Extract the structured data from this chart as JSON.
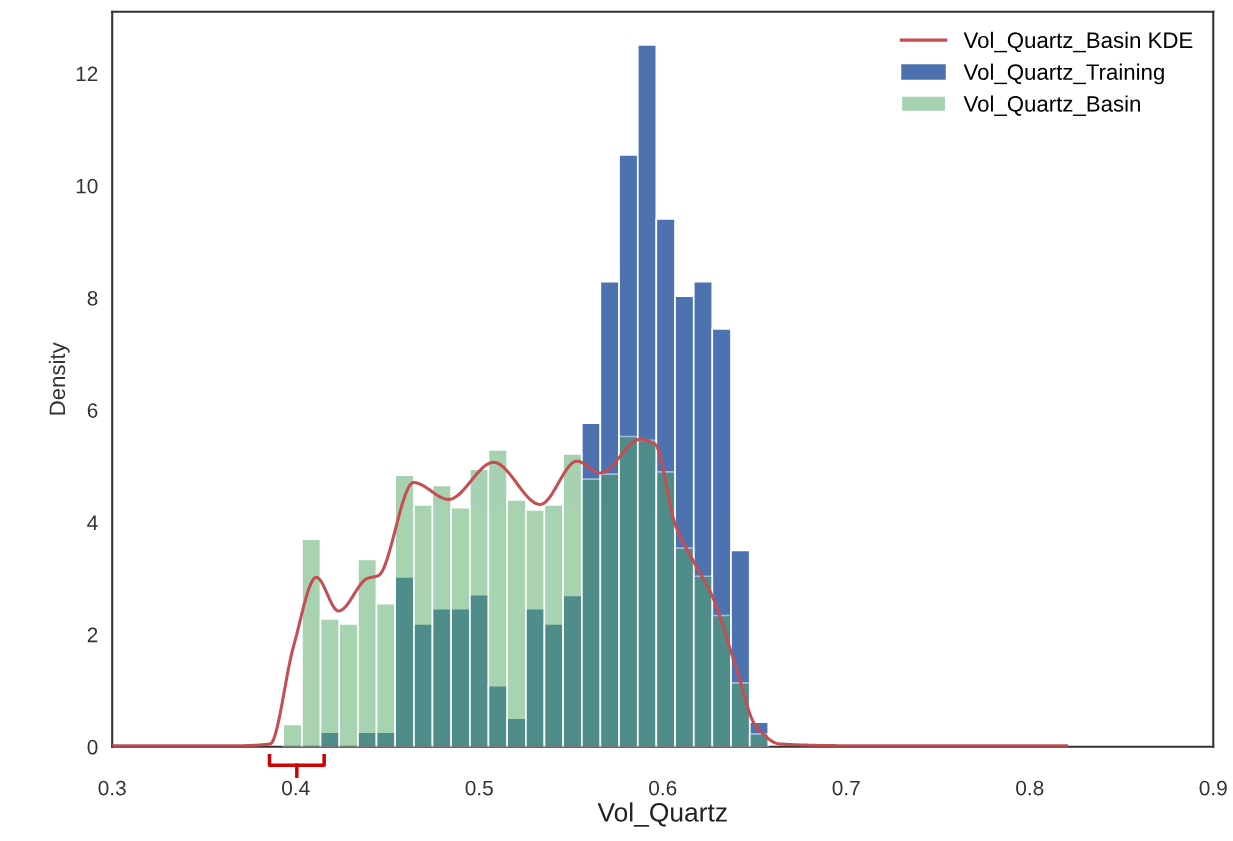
{
  "chart_data": {
    "type": "histogram",
    "xlabel": "Vol_Quartz",
    "ylabel": "Density",
    "bins": [
      0.3932,
      0.4034,
      0.4135,
      0.4237,
      0.4339,
      0.444,
      0.4542,
      0.4644,
      0.4745,
      0.4847,
      0.4949,
      0.505,
      0.5152,
      0.5254,
      0.5355,
      0.5457,
      0.5559,
      0.566,
      0.5762,
      0.5864,
      0.5965,
      0.6067,
      0.6169,
      0.627,
      0.6372,
      0.6474,
      0.6575
    ],
    "series": [
      {
        "name": "Vol_Quartz_Training",
        "color": "#4c72b0",
        "values": [
          0,
          0,
          0.26,
          0,
          0.26,
          0.26,
          3.03,
          2.19,
          2.46,
          2.46,
          2.71,
          1.09,
          0.51,
          2.46,
          2.19,
          2.7,
          5.77,
          8.29,
          10.55,
          12.51,
          9.41,
          8.03,
          8.29,
          7.45,
          3.5,
          0.44
        ]
      },
      {
        "name": "Vol_Quartz_Basin",
        "color": "#a8d3b2",
        "values": [
          0.4,
          3.7,
          2.28,
          2.19,
          3.34,
          2.55,
          4.84,
          4.31,
          4.66,
          4.26,
          4.95,
          5.29,
          4.4,
          4.22,
          4.31,
          5.22,
          4.77,
          4.86,
          5.53,
          5.46,
          4.9,
          3.54,
          3.04,
          2.34,
          1.14,
          0.23
        ]
      },
      {
        "name": "Vol_Quartz_Basin KDE",
        "type": "line",
        "color": "#c44e52",
        "x": [
          0.3,
          0.37,
          0.386,
          0.3988,
          0.4112,
          0.4233,
          0.439,
          0.445,
          0.4642,
          0.4833,
          0.5078,
          0.5332,
          0.5532,
          0.566,
          0.5877,
          0.5959,
          0.6068,
          0.6177,
          0.6272,
          0.6395,
          0.6504,
          0.664,
          0.7,
          0.82
        ],
        "values": [
          0.02,
          0.02,
          0.05,
          1.79,
          3.02,
          2.42,
          3.0,
          3.05,
          4.71,
          4.41,
          5.07,
          4.32,
          5.09,
          4.88,
          5.48,
          5.39,
          3.96,
          3.25,
          2.67,
          1.46,
          0.39,
          0.05,
          0.02,
          0.02
        ]
      }
    ],
    "xlim": [
      0.3,
      0.9
    ],
    "xticks": [
      0.3,
      0.4,
      0.5,
      0.6,
      0.7,
      0.8,
      0.9
    ],
    "ylim": [
      0,
      13.1
    ],
    "yticks": [
      0,
      2,
      4,
      6,
      8,
      10,
      12
    ],
    "legend": "top right",
    "grid": false
  }
}
